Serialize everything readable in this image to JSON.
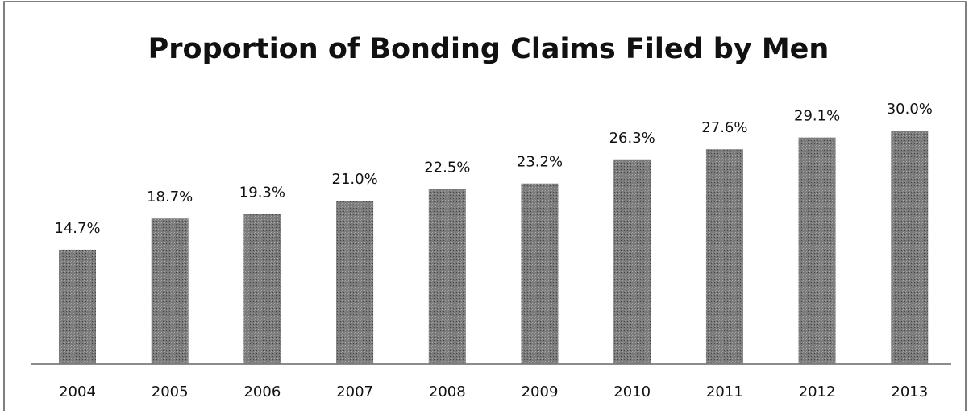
{
  "chart_data": {
    "type": "bar",
    "title": "Proportion of Bonding Claims Filed by Men",
    "categories": [
      "2004",
      "2005",
      "2006",
      "2007",
      "2008",
      "2009",
      "2010",
      "2011",
      "2012",
      "2013"
    ],
    "values": [
      14.7,
      18.7,
      19.3,
      21.0,
      22.5,
      23.2,
      26.3,
      27.6,
      29.1,
      30.0
    ],
    "value_labels": [
      "14.7%",
      "18.7%",
      "19.3%",
      "21.0%",
      "22.5%",
      "23.2%",
      "26.3%",
      "27.6%",
      "29.1%",
      "30.0%"
    ],
    "color": "#7b7b7b"
  }
}
